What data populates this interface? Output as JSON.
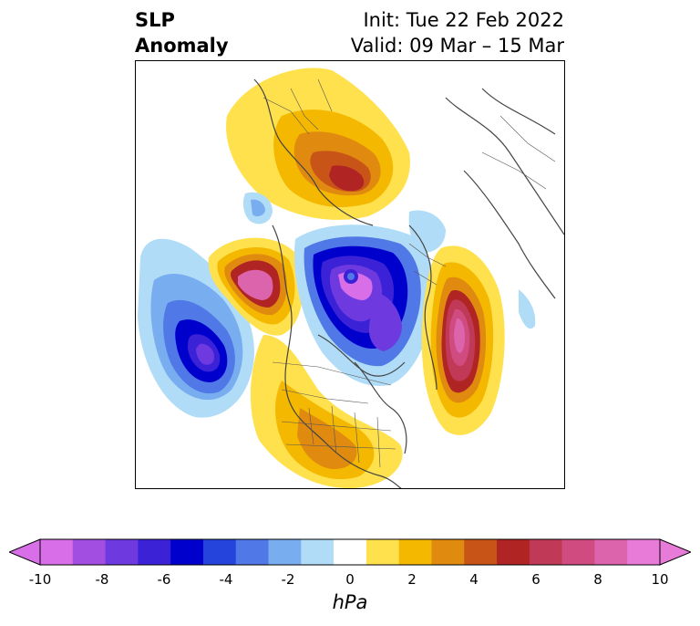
{
  "title": {
    "variable_line1": "SLP",
    "variable_line2": "Anomaly",
    "init": "Init: Tue 22 Feb 2022",
    "valid": "Valid: 09 Mar – 15 Mar"
  },
  "colorbar": {
    "unit": "hPa",
    "ticks": [
      "-10",
      "-8",
      "-6",
      "-4",
      "-2",
      "0",
      "2",
      "4",
      "6",
      "8",
      "10"
    ],
    "colors": [
      "#d86fe8",
      "#a24ee0",
      "#6e3ae0",
      "#3b22d6",
      "#0000cc",
      "#2444db",
      "#5078e6",
      "#78aef0",
      "#b0dcf8",
      "#ffffff",
      "#ffe14d",
      "#f4b800",
      "#e08a10",
      "#c85418",
      "#b02424",
      "#c03a58",
      "#d04c80",
      "#dc64ac",
      "#e87ad8"
    ],
    "extend_min_color": "#d86fe8",
    "extend_max_color": "#e87ad8"
  }
}
